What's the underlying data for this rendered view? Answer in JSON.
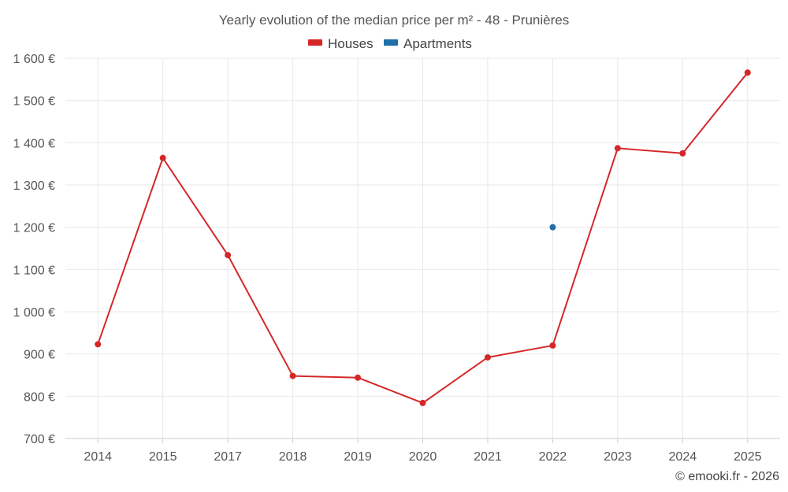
{
  "chart_data": {
    "type": "line",
    "title": "Yearly evolution of the median price per m² - 48 - Prunières",
    "categories": [
      "2014",
      "2015",
      "2017",
      "2018",
      "2019",
      "2020",
      "2021",
      "2022",
      "2023",
      "2024",
      "2025"
    ],
    "series": [
      {
        "name": "Houses",
        "color": "#d62728",
        "values": [
          923,
          1364,
          1134,
          848,
          844,
          784,
          892,
          920,
          1387,
          1375,
          1566
        ]
      },
      {
        "name": "Apartments",
        "color": "#1f6fa8",
        "values": [
          null,
          null,
          null,
          null,
          null,
          null,
          null,
          1200,
          null,
          null,
          null
        ]
      }
    ],
    "ylim": [
      700,
      1600
    ],
    "yticks": [
      700,
      800,
      900,
      1000,
      1100,
      1200,
      1300,
      1400,
      1500,
      1600
    ],
    "ytick_labels": [
      "700 €",
      "800 €",
      "900 €",
      "1 000 €",
      "1 100 €",
      "1 200 €",
      "1 300 €",
      "1 400 €",
      "1 500 €",
      "1 600 €"
    ],
    "grid": true,
    "legend_position": "top-center"
  },
  "credit": "© emooki.fr - 2026"
}
